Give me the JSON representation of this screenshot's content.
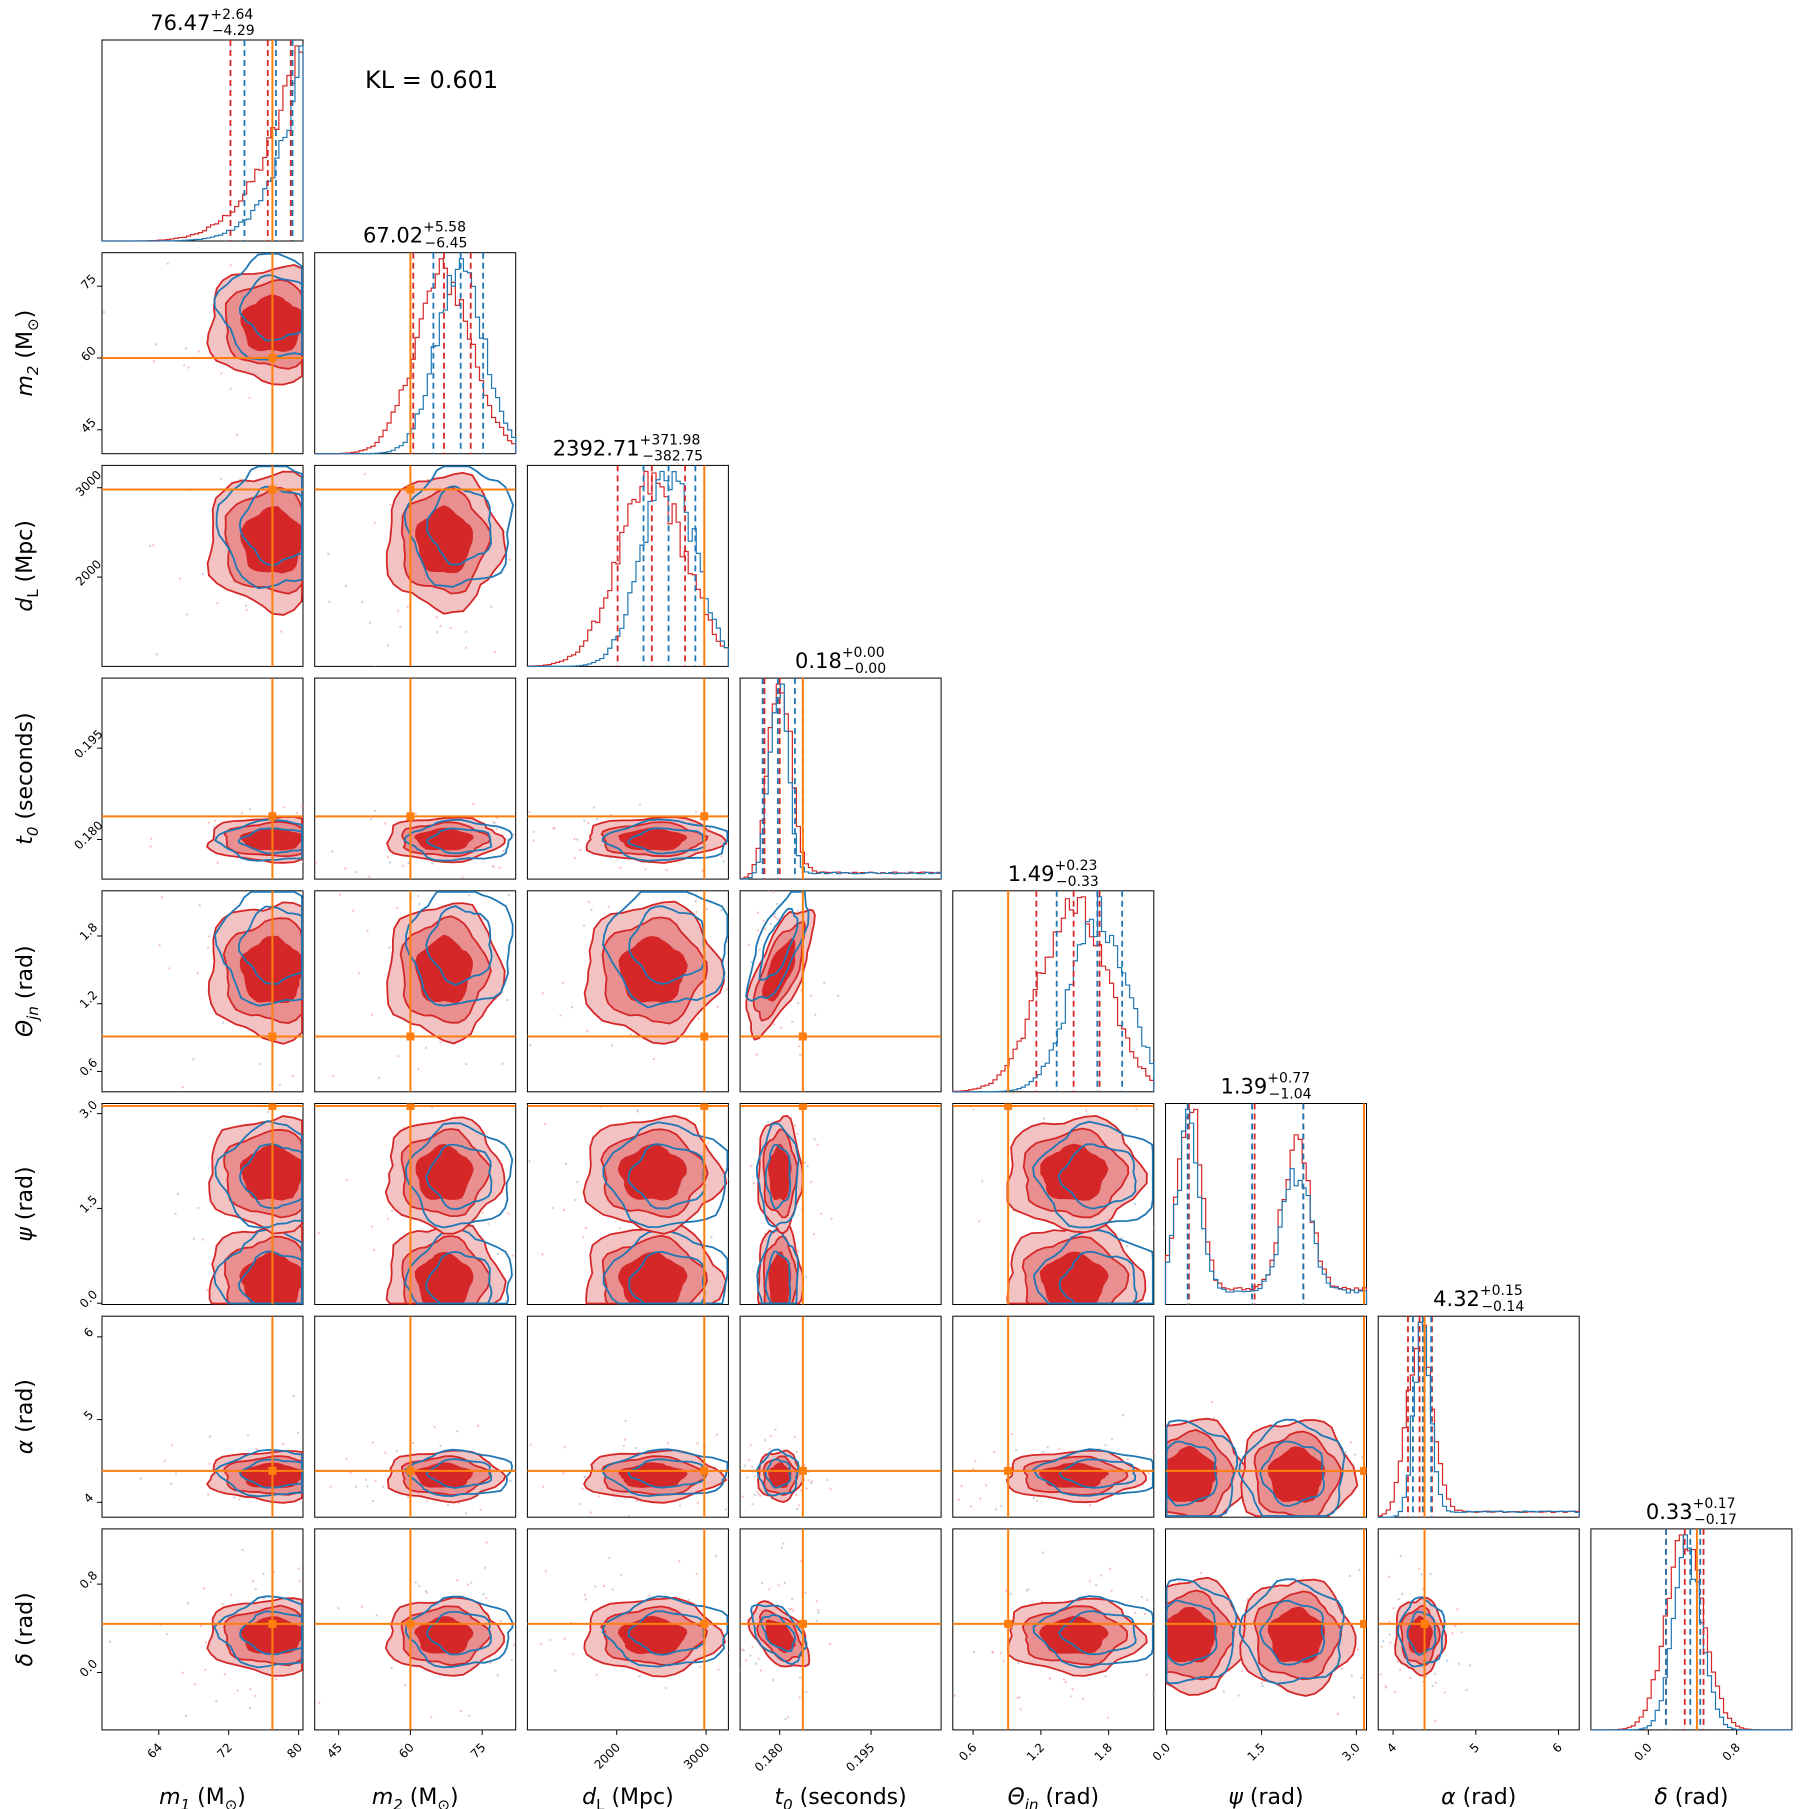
{
  "annotation": {
    "kl_text": "KL = 0.601"
  },
  "colors": {
    "red": "#d62728",
    "blue": "#1f77b4",
    "orange": "#ff7f0e",
    "red_mid": "#e98f90",
    "red_light": "#f3c3c3",
    "median_dark": "#7b3b45"
  },
  "chart_data": {
    "type": "corner",
    "legend": null,
    "series": [
      {
        "name": "red",
        "color": "#d62728",
        "style": "filled contours + histograms"
      },
      {
        "name": "blue",
        "color": "#1f77b4",
        "style": "contour lines + histograms"
      },
      {
        "name": "truth",
        "color": "#ff7f0e",
        "style": "injection lines"
      }
    ],
    "parameters": [
      {
        "key": "m1",
        "label_main": "m",
        "label_sub": "1",
        "label_unit": " (M",
        "label_unit_sub": "⊙",
        "label_unit_end": ")",
        "range": [
          57.5,
          80.5
        ],
        "ticks": [
          "64",
          "72",
          "80"
        ],
        "tick_values": [
          64,
          72,
          80
        ],
        "title_median": "76.47",
        "title_plus": "+2.64",
        "title_minus": "−4.29",
        "truth": 77.0,
        "red_q": [
          72.2,
          76.47,
          79.1
        ],
        "blue_q": [
          73.8,
          77.4,
          79.3
        ],
        "red_mu": 77.0,
        "red_sd": 3.7,
        "blue_mu": 77.6,
        "blue_sd": 2.6,
        "hist_kind": "skew_high"
      },
      {
        "key": "m2",
        "label_main": "m",
        "label_sub": "2",
        "label_unit": " (M",
        "label_unit_sub": "⊙",
        "label_unit_end": ")",
        "range": [
          40.0,
          82.0
        ],
        "ticks": [
          "45",
          "60",
          "75"
        ],
        "tick_values": [
          45,
          60,
          75
        ],
        "title_median": "67.02",
        "title_plus": "+5.58",
        "title_minus": "−6.45",
        "truth": 60.0,
        "red_q": [
          60.6,
          67.02,
          72.6
        ],
        "blue_q": [
          64.8,
          70.5,
          75.2
        ],
        "red_mu": 67.0,
        "red_sd": 6.0,
        "blue_mu": 70.5,
        "blue_sd": 5.0,
        "hist_kind": "normal"
      },
      {
        "key": "dL",
        "label_main": "d",
        "label_sub": "L",
        "label_unit": " (Mpc)",
        "label_unit_sub": "",
        "label_unit_end": "",
        "range": [
          1000,
          3250
        ],
        "ticks": [
          "2000",
          "3000"
        ],
        "tick_values": [
          2000,
          3000
        ],
        "title_median": "2392.71",
        "title_plus": "+371.98",
        "title_minus": "−382.75",
        "truth": 2980,
        "red_q": [
          2010,
          2392.71,
          2765
        ],
        "blue_q": [
          2300,
          2580,
          2880
        ],
        "red_mu": 2400,
        "red_sd": 380,
        "blue_mu": 2580,
        "blue_sd": 300,
        "hist_kind": "normal"
      },
      {
        "key": "t0",
        "label_main": "t",
        "label_sub": "0",
        "label_unit": " (seconds)",
        "label_unit_sub": "",
        "label_unit_end": "",
        "range": [
          0.1735,
          0.2065
        ],
        "ticks": [
          "0.180",
          "0.195"
        ],
        "tick_values": [
          0.18,
          0.195
        ],
        "title_median": "0.18",
        "title_plus": "+0.00",
        "title_minus": "−0.00",
        "truth": 0.1838,
        "red_q": [
          0.1775,
          0.18,
          0.1838
        ],
        "blue_q": [
          0.1772,
          0.1797,
          0.1825
        ],
        "red_mu": 0.18,
        "red_sd": 0.0018,
        "blue_mu": 0.1798,
        "blue_sd": 0.0015,
        "hist_kind": "normal_tail"
      },
      {
        "key": "thetajn",
        "label_main": "Θ",
        "label_sub": "jn",
        "label_unit": " (rad)",
        "label_unit_sub": "",
        "label_unit_end": "",
        "range": [
          0.42,
          2.2
        ],
        "ticks": [
          "0.6",
          "1.2",
          "1.8"
        ],
        "tick_values": [
          0.6,
          1.2,
          1.8
        ],
        "title_median": "1.49",
        "title_plus": "+0.23",
        "title_minus": "−0.33",
        "truth": 0.91,
        "red_q": [
          1.16,
          1.49,
          1.72
        ],
        "blue_q": [
          1.34,
          1.7,
          1.92
        ],
        "red_mu": 1.49,
        "red_sd": 0.3,
        "blue_mu": 1.72,
        "blue_sd": 0.25,
        "hist_kind": "normal"
      },
      {
        "key": "psi",
        "label_main": "ψ",
        "label_sub": "",
        "label_unit": " (rad)",
        "label_unit_sub": "",
        "label_unit_end": "",
        "range": [
          -0.02,
          3.16
        ],
        "ticks": [
          "0.0",
          "1.5",
          "3.0"
        ],
        "tick_values": [
          0.0,
          1.5,
          3.0
        ],
        "title_median": "1.39",
        "title_plus": "+0.77",
        "title_minus": "−1.04",
        "truth": 3.12,
        "red_q": [
          0.35,
          1.39,
          2.16
        ],
        "blue_q": [
          0.33,
          1.35,
          2.16
        ],
        "red_mu": 1.39,
        "red_sd": 0.9,
        "blue_mu": 1.35,
        "blue_sd": 0.9,
        "hist_kind": "bimodal"
      },
      {
        "key": "alpha",
        "label_main": "α",
        "label_sub": "",
        "label_unit": " (rad)",
        "label_unit_sub": "",
        "label_unit_end": "",
        "range": [
          3.82,
          6.25
        ],
        "ticks": [
          "4",
          "5",
          "6"
        ],
        "tick_values": [
          4,
          5,
          6
        ],
        "title_median": "4.32",
        "title_plus": "+0.15",
        "title_minus": "−0.14",
        "truth": 4.38,
        "red_q": [
          4.18,
          4.32,
          4.47
        ],
        "blue_q": [
          4.24,
          4.36,
          4.46
        ],
        "red_mu": 4.32,
        "red_sd": 0.15,
        "blue_mu": 4.35,
        "blue_sd": 0.1,
        "hist_kind": "normal_tail"
      },
      {
        "key": "delta",
        "label_main": "δ",
        "label_sub": "",
        "label_unit": " (rad)",
        "label_unit_sub": "",
        "label_unit_end": "",
        "range": [
          -0.52,
          1.3
        ],
        "ticks": [
          "0.0",
          "0.8"
        ],
        "tick_values": [
          0.0,
          0.8
        ],
        "title_median": "0.33",
        "title_plus": "+0.17",
        "title_minus": "−0.17",
        "truth": 0.44,
        "red_q": [
          0.16,
          0.33,
          0.5
        ],
        "blue_q": [
          0.16,
          0.38,
          0.47
        ],
        "red_mu": 0.33,
        "red_sd": 0.17,
        "blue_mu": 0.36,
        "blue_sd": 0.13,
        "hist_kind": "normal"
      }
    ]
  }
}
